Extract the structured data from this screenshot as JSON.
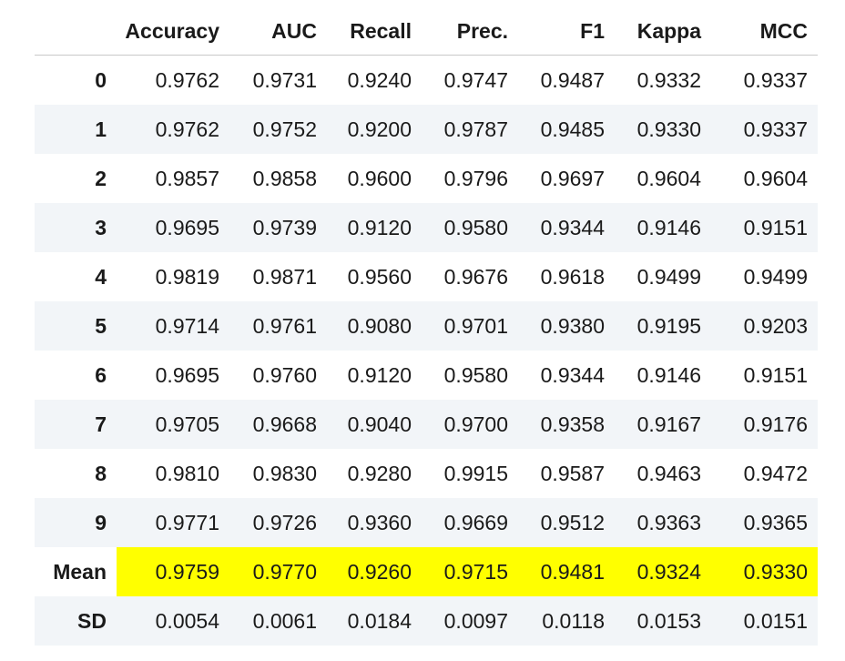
{
  "table": {
    "columns": [
      "Accuracy",
      "AUC",
      "Recall",
      "Prec.",
      "F1",
      "Kappa",
      "MCC"
    ],
    "rows": [
      {
        "index": "0",
        "values": [
          "0.9762",
          "0.9731",
          "0.9240",
          "0.9747",
          "0.9487",
          "0.9332",
          "0.9337"
        ]
      },
      {
        "index": "1",
        "values": [
          "0.9762",
          "0.9752",
          "0.9200",
          "0.9787",
          "0.9485",
          "0.9330",
          "0.9337"
        ]
      },
      {
        "index": "2",
        "values": [
          "0.9857",
          "0.9858",
          "0.9600",
          "0.9796",
          "0.9697",
          "0.9604",
          "0.9604"
        ]
      },
      {
        "index": "3",
        "values": [
          "0.9695",
          "0.9739",
          "0.9120",
          "0.9580",
          "0.9344",
          "0.9146",
          "0.9151"
        ]
      },
      {
        "index": "4",
        "values": [
          "0.9819",
          "0.9871",
          "0.9560",
          "0.9676",
          "0.9618",
          "0.9499",
          "0.9499"
        ]
      },
      {
        "index": "5",
        "values": [
          "0.9714",
          "0.9761",
          "0.9080",
          "0.9701",
          "0.9380",
          "0.9195",
          "0.9203"
        ]
      },
      {
        "index": "6",
        "values": [
          "0.9695",
          "0.9760",
          "0.9120",
          "0.9580",
          "0.9344",
          "0.9146",
          "0.9151"
        ]
      },
      {
        "index": "7",
        "values": [
          "0.9705",
          "0.9668",
          "0.9040",
          "0.9700",
          "0.9358",
          "0.9167",
          "0.9176"
        ]
      },
      {
        "index": "8",
        "values": [
          "0.9810",
          "0.9830",
          "0.9280",
          "0.9915",
          "0.9587",
          "0.9463",
          "0.9472"
        ]
      },
      {
        "index": "9",
        "values": [
          "0.9771",
          "0.9726",
          "0.9360",
          "0.9669",
          "0.9512",
          "0.9363",
          "0.9365"
        ]
      },
      {
        "index": "Mean",
        "values": [
          "0.9759",
          "0.9770",
          "0.9260",
          "0.9715",
          "0.9481",
          "0.9324",
          "0.9330"
        ],
        "highlight": true
      },
      {
        "index": "SD",
        "values": [
          "0.0054",
          "0.0061",
          "0.0184",
          "0.0097",
          "0.0118",
          "0.0153",
          "0.0151"
        ]
      }
    ]
  },
  "colors": {
    "highlight": "#ffff00",
    "zebra": "#f2f5f8",
    "text": "#1a1a1a"
  }
}
